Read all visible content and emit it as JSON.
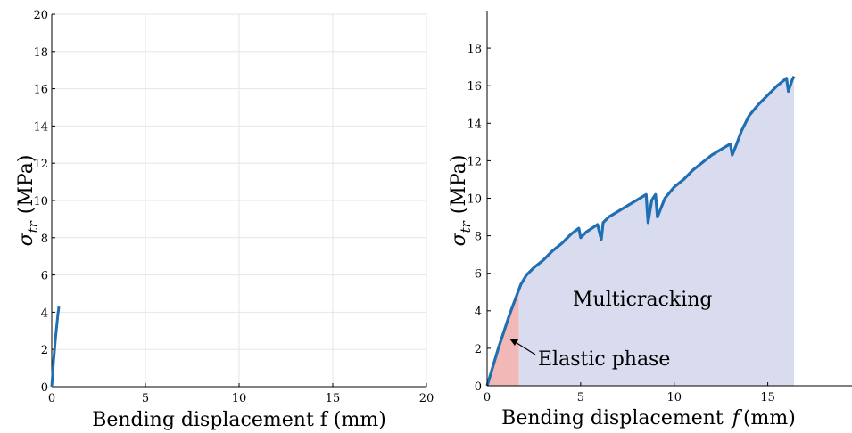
{
  "chart_data": [
    {
      "type": "line",
      "title": "",
      "xlabel": "Bending displacement f (mm)",
      "ylabel": "σtr (MPa)",
      "ylabel_symbol": "σ",
      "ylabel_sub": "tr",
      "ylabel_unit": "(MPa)",
      "xlim": [
        0,
        20
      ],
      "ylim": [
        0,
        20
      ],
      "xticks": [
        0,
        5,
        10,
        15,
        20
      ],
      "yticks": [
        0,
        2,
        4,
        6,
        8,
        10,
        12,
        14,
        16,
        18,
        20
      ],
      "grid": true,
      "series": [
        {
          "color": "#1f6fb2",
          "x": [
            0,
            0.05,
            0.1,
            0.15,
            0.2,
            0.25,
            0.3,
            0.33,
            0.36,
            0.38
          ],
          "y": [
            0,
            0.7,
            1.4,
            2.0,
            2.6,
            3.1,
            3.6,
            3.9,
            4.1,
            4.3
          ]
        }
      ]
    },
    {
      "type": "area",
      "title": "",
      "xlabel": "Bending displacement",
      "xlabel_var": "f",
      "xlabel_unit": "(mm)",
      "ylabel": "σtr (MPa)",
      "ylabel_symbol": "σ",
      "ylabel_sub": "tr",
      "ylabel_unit": "(MPa)",
      "xlim": [
        0,
        19.5
      ],
      "ylim": [
        0,
        20
      ],
      "xticks": [
        0,
        5,
        10,
        15
      ],
      "yticks": [
        0,
        2,
        4,
        6,
        8,
        10,
        12,
        14,
        16,
        18
      ],
      "grid": false,
      "regions": [
        {
          "name": "Elastic phase",
          "x_range": [
            0,
            1.7
          ],
          "color": "#f2b8b8"
        },
        {
          "name": "Multicracking",
          "x_range": [
            1.7,
            16.4
          ],
          "color": "#d9dcee"
        }
      ],
      "annotations": [
        {
          "text": "Elastic phase",
          "x": 2.6,
          "y": 1.3,
          "arrow_to": [
            1.1,
            2.5
          ]
        },
        {
          "text": "Multicracking",
          "x": 4.5,
          "y": 4.5
        }
      ],
      "series": [
        {
          "color": "#1f6fb2",
          "x": [
            0,
            0.3,
            0.6,
            0.9,
            1.2,
            1.5,
            1.8,
            2.1,
            2.5,
            3.0,
            3.5,
            4.0,
            4.5,
            4.9,
            5.0,
            5.3,
            5.6,
            5.9,
            6.1,
            6.2,
            6.5,
            7.0,
            7.5,
            8.0,
            8.5,
            8.6,
            8.8,
            9.0,
            9.1,
            9.5,
            10.0,
            10.5,
            11.0,
            11.5,
            12.0,
            12.5,
            13.0,
            13.1,
            13.3,
            13.6,
            14.0,
            14.5,
            15.0,
            15.5,
            16.0,
            16.1,
            16.3,
            16.4
          ],
          "y": [
            0,
            1.0,
            2.0,
            2.9,
            3.8,
            4.6,
            5.4,
            5.9,
            6.3,
            6.7,
            7.2,
            7.6,
            8.1,
            8.4,
            7.9,
            8.2,
            8.4,
            8.6,
            7.8,
            8.7,
            9.0,
            9.3,
            9.6,
            9.9,
            10.2,
            8.7,
            9.9,
            10.2,
            9.0,
            10.0,
            10.6,
            11.0,
            11.5,
            11.9,
            12.3,
            12.6,
            12.9,
            12.3,
            12.8,
            13.6,
            14.4,
            15.0,
            15.5,
            16.0,
            16.4,
            15.7,
            16.3,
            16.5
          ]
        }
      ]
    }
  ]
}
